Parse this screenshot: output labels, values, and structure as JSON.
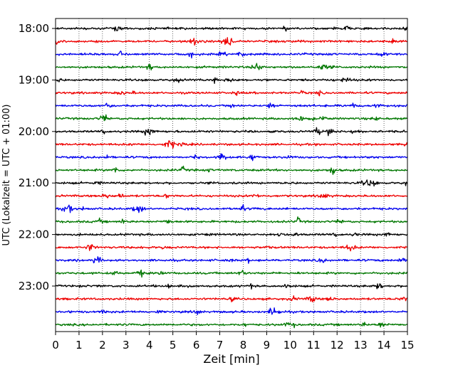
{
  "chart_data": {
    "type": "line",
    "title": "",
    "xlabel": "Zeit  [min]",
    "ylabel": "UTC (Lokalzeit = UTC + 01:00)",
    "xlim": [
      0,
      15
    ],
    "x_ticks": [
      "0",
      "1",
      "2",
      "3",
      "4",
      "5",
      "6",
      "7",
      "8",
      "9",
      "10",
      "11",
      "12",
      "13",
      "14",
      "15"
    ],
    "y_ticks": [
      "18:00",
      "19:00",
      "20:00",
      "21:00",
      "22:00",
      "23:00"
    ],
    "grid": "vertical dotted lines at each minute",
    "trace_minutes": 15,
    "trace_start_times": [
      "18:00",
      "18:15",
      "18:30",
      "18:45",
      "19:00",
      "19:15",
      "19:30",
      "19:45",
      "20:00",
      "20:15",
      "20:30",
      "20:45",
      "21:00",
      "21:15",
      "21:30",
      "21:45",
      "22:00",
      "22:15",
      "22:30",
      "22:45",
      "23:00",
      "23:15",
      "23:30",
      "23:45"
    ],
    "trace_colors": [
      "#000000",
      "#ee0000",
      "#0000ee",
      "#007700"
    ],
    "legend": "none"
  }
}
